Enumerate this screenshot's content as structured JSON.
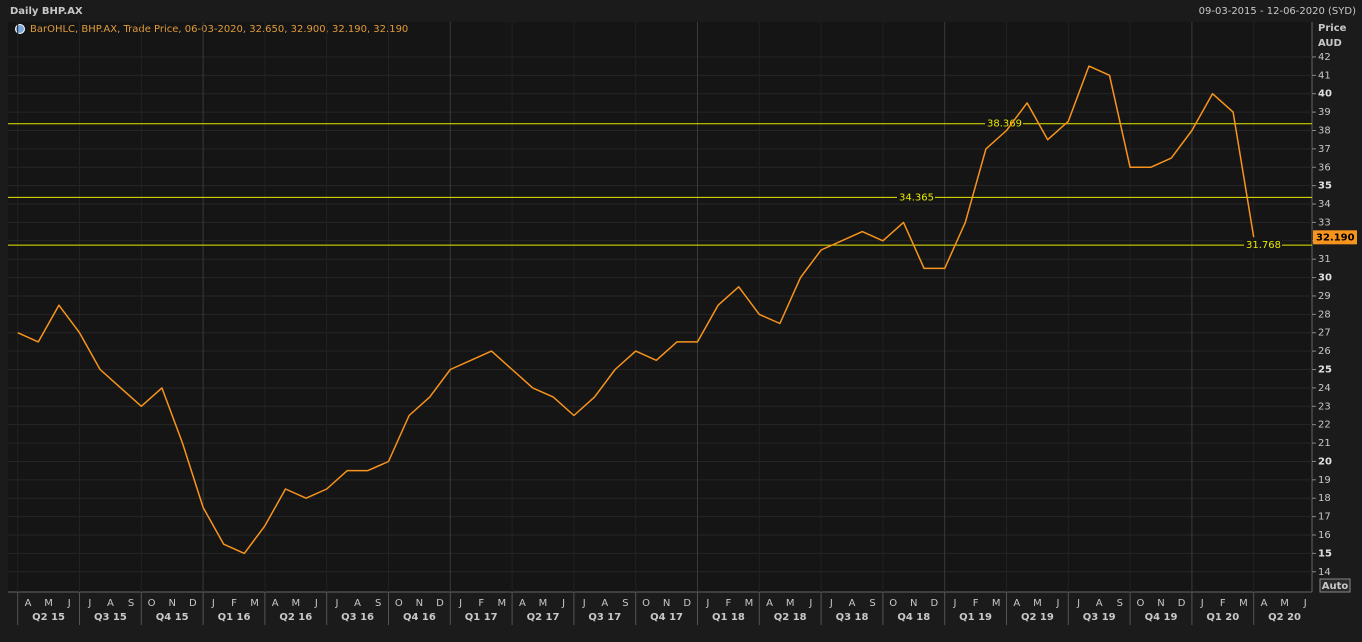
{
  "header": {
    "title": "Daily BHP.AX",
    "range": "09-03-2015 - 12-06-2020 (SYD)"
  },
  "chart_data": {
    "type": "line",
    "legend_text": "BarOHLC, BHP.AX, Trade Price, 06-03-2020, 32.650, 32.900, 32.190, 32.190",
    "y_axis_title": "Price",
    "y_axis_unit": "AUD",
    "scale_mode": "Auto",
    "color": "#f7941d",
    "categories": [
      null,
      "A",
      "M",
      "J",
      "J",
      "A",
      "S",
      "O",
      "N",
      "D",
      "J",
      "F",
      "M",
      "A",
      "M",
      "J",
      "J",
      "A",
      "S",
      "O",
      "N",
      "D",
      "J",
      "F",
      "M",
      "A",
      "M",
      "J",
      "J",
      "A",
      "S",
      "O",
      "N",
      "D",
      "J",
      "F",
      "M",
      "A",
      "M",
      "J",
      "J",
      "A",
      "S",
      "O",
      "N",
      "D",
      "J",
      "F",
      "M",
      "A",
      "M",
      "J",
      "J",
      "A",
      "S",
      "O",
      "N",
      "D",
      "J",
      "F",
      "M",
      "A",
      "M",
      "J"
    ],
    "quarters": [
      "Q2 15",
      "Q3 15",
      "Q4 15",
      "Q1 16",
      "Q2 16",
      "Q3 16",
      "Q4 16",
      "Q1 17",
      "Q2 17",
      "Q3 17",
      "Q4 17",
      "Q1 18",
      "Q2 18",
      "Q3 18",
      "Q4 18",
      "Q1 19",
      "Q2 19",
      "Q3 19",
      "Q4 19",
      "Q1 20",
      "Q2 20"
    ],
    "values": [
      27,
      26.5,
      28.5,
      27,
      25,
      24,
      23,
      24,
      21,
      17.5,
      15.5,
      15,
      16.5,
      18.5,
      18,
      18.5,
      19.5,
      19.5,
      20,
      22.5,
      23.5,
      25,
      25.5,
      26,
      25,
      24,
      23.5,
      22.5,
      23.5,
      25,
      26,
      25.5,
      26.5,
      26.5,
      28.5,
      29.5,
      28,
      27.5,
      30,
      31.5,
      32,
      32.5,
      32,
      33,
      30.5,
      30.5,
      33,
      37,
      38,
      39.5,
      37.5,
      38.5,
      41.5,
      41,
      36,
      36,
      36.5,
      38,
      40,
      39,
      32.2,
      null,
      null,
      null
    ],
    "ylim": [
      12.9,
      43.9
    ],
    "yticks": [
      14,
      15,
      16,
      17,
      18,
      19,
      20,
      21,
      22,
      23,
      24,
      25,
      26,
      27,
      28,
      29,
      30,
      31,
      32,
      33,
      34,
      35,
      36,
      37,
      38,
      39,
      40,
      41,
      42
    ],
    "grid": true,
    "reference_lines": [
      38.369,
      34.365,
      31.768
    ],
    "reference_color": "#e8e800",
    "last_price": {
      "value": 32.19,
      "label": "32.190"
    }
  }
}
